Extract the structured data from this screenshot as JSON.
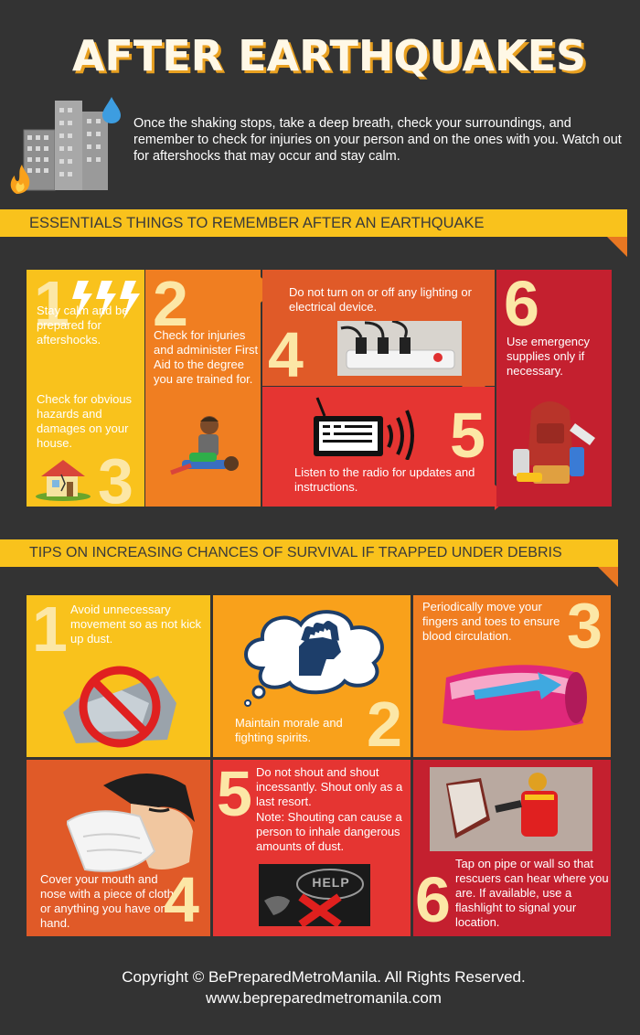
{
  "title": "AFTER EARTHQUAKES",
  "intro": "Once the shaking stops, take a deep breath, check your surroundings, and remember to check for injuries on your person and on the ones with you. Watch out for aftershocks that may occur and stay calm.",
  "section1": {
    "heading": "ESSENTIALS THINGS TO REMEMBER AFTER AN EARTHQUAKE",
    "items": [
      {
        "number": "1",
        "text": "Stay calm and be prepared for aftershocks."
      },
      {
        "number": "2",
        "text": "Check for injuries and administer First Aid to the degree you are trained for."
      },
      {
        "number": "3",
        "text": "Check for obvious hazards and damages on your house."
      },
      {
        "number": "4",
        "text": "Do not turn on or off any lighting or electrical device."
      },
      {
        "number": "5",
        "text": "Listen to the radio for updates and instructions."
      },
      {
        "number": "6",
        "text": "Use emergency supplies only if necessary."
      }
    ]
  },
  "section2": {
    "heading": "TIPS ON INCREASING CHANCES OF SURVIVAL IF TRAPPED UNDER DEBRIS",
    "items": [
      {
        "number": "1",
        "text": "Avoid unnecessary movement so as not kick up dust."
      },
      {
        "number": "2",
        "text": "Maintain morale and fighting spirits."
      },
      {
        "number": "3",
        "text": "Periodically move your fingers and toes to ensure blood circulation."
      },
      {
        "number": "4",
        "text": "Cover your mouth and nose with a piece of cloth or anything you have on hand."
      },
      {
        "number": "5",
        "text": "Do not shout and shout incessantly. Shout only as a last resort.",
        "note": "Note: Shouting can cause a person to inhale dangerous amounts of dust.",
        "sign": "HELP"
      },
      {
        "number": "6",
        "text": "Tap on pipe or wall so that rescuers can hear where you are. If available, use a flashlight to signal your location."
      }
    ]
  },
  "footer": {
    "copyright": "Copyright © BePreparedMetroManila. All Rights Reserved.",
    "url": "www.bepreparedmetromanila.com"
  },
  "colors": {
    "background": "#333333",
    "yellow": "#f9c21c",
    "orange": "#f07e21",
    "dark_orange": "#e05a28",
    "red": "#e53532",
    "dark_red": "#c4202f",
    "number": "#fce7a6"
  }
}
